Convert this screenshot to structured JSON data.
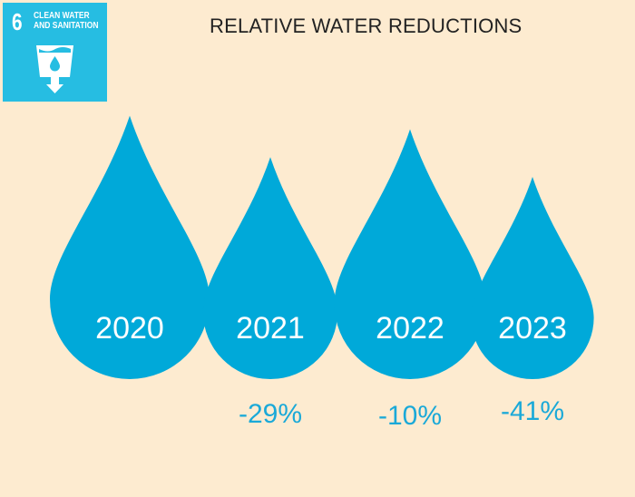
{
  "logo": {
    "number": "6",
    "goal_line1": "CLEAN WATER",
    "goal_line2": "AND SANITATION"
  },
  "colors": {
    "background": "#fdebd0",
    "drop": "#00a9d9",
    "percent_text": "#1aa9d8",
    "logo": "#26bde2"
  },
  "chart_data": {
    "type": "pictogram",
    "title": "RELATIVE WATER REDUCTIONS",
    "categories": [
      "2020",
      "2021",
      "2022",
      "2023"
    ],
    "change_vs_2020_percent": [
      null,
      -29,
      -10,
      -41
    ],
    "labels": [
      "",
      "-29%",
      "-10%",
      "-41%"
    ],
    "icon": "water-drop"
  }
}
